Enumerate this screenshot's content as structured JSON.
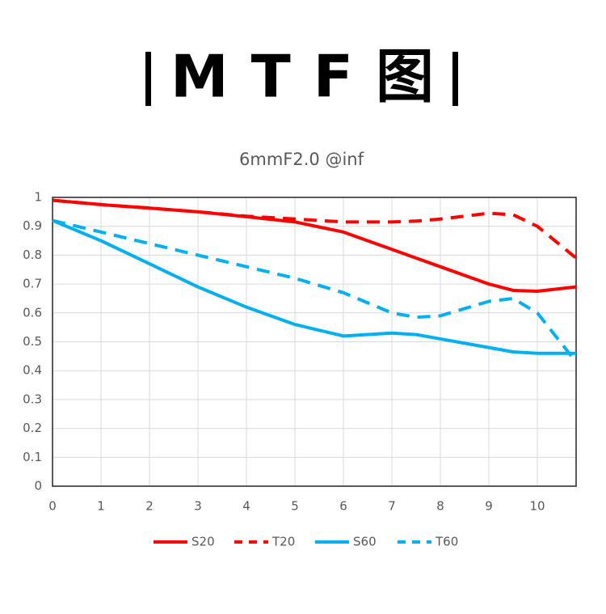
{
  "header": {
    "title": "MTF图"
  },
  "chart_data": {
    "type": "line",
    "title": "6mmF2.0 @inf",
    "x": [
      0,
      1,
      2,
      3,
      4,
      5,
      6,
      7,
      7.5,
      8,
      9,
      9.5,
      10,
      10.8
    ],
    "series": [
      {
        "name": "S20",
        "color": "#ff0000",
        "dash": false,
        "values": [
          0.99,
          0.975,
          0.963,
          0.95,
          0.933,
          0.915,
          0.88,
          0.82,
          0.79,
          0.76,
          0.7,
          0.678,
          0.675,
          0.69
        ]
      },
      {
        "name": "T20",
        "color": "#ff0000",
        "dash": true,
        "values": [
          0.99,
          0.975,
          0.963,
          0.95,
          0.935,
          0.925,
          0.915,
          0.915,
          0.918,
          0.925,
          0.945,
          0.94,
          0.9,
          0.79
        ]
      },
      {
        "name": "S60",
        "color": "#00b0f0",
        "dash": false,
        "values": [
          0.92,
          0.85,
          0.77,
          0.69,
          0.62,
          0.56,
          0.52,
          0.53,
          0.525,
          0.51,
          0.48,
          0.465,
          0.46,
          0.46
        ]
      },
      {
        "name": "T60",
        "color": "#00b0f0",
        "dash": true,
        "values": [
          0.92,
          0.88,
          0.84,
          0.8,
          0.76,
          0.72,
          0.67,
          0.6,
          0.585,
          0.59,
          0.64,
          0.65,
          0.6,
          0.43
        ]
      }
    ],
    "xlim": [
      0,
      10.8
    ],
    "xticks": [
      0,
      1,
      2,
      3,
      4,
      5,
      6,
      7,
      8,
      9,
      10
    ],
    "ylim": [
      0,
      1
    ],
    "yticks": [
      0,
      0.1,
      0.2,
      0.3,
      0.4,
      0.5,
      0.6,
      0.7,
      0.8,
      0.9,
      1
    ],
    "grid": true,
    "legend": "bottom"
  }
}
